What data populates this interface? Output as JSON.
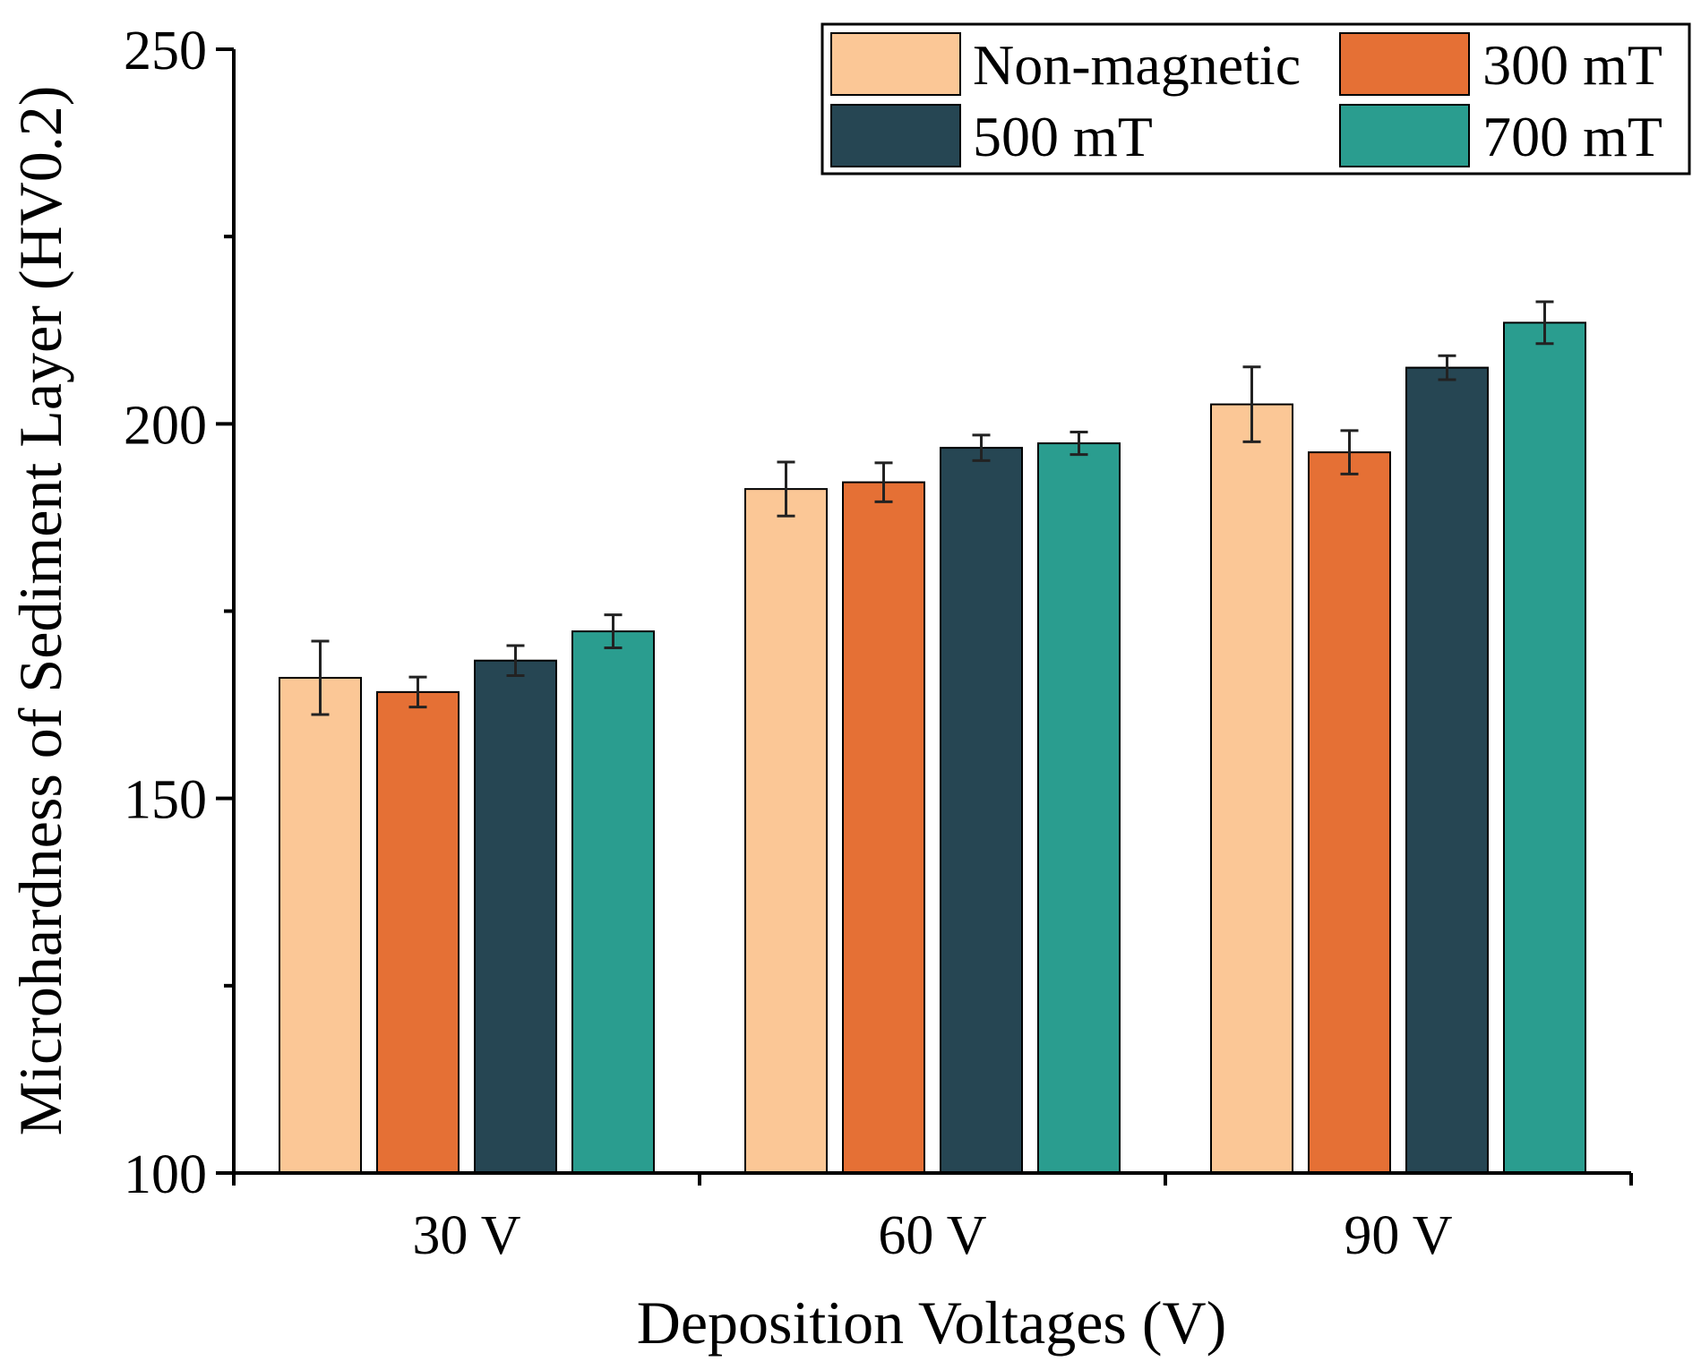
{
  "chart_data": {
    "type": "bar",
    "title": "",
    "xlabel": "Deposition Voltages (V)",
    "ylabel": "Microhardness of Sediment Layer  (HV0.2)",
    "categories": [
      "30 V",
      "60 V",
      "90 V"
    ],
    "ylim": [
      100,
      250
    ],
    "yticks": [
      100,
      150,
      200,
      250
    ],
    "yminor": [
      125,
      175,
      225
    ],
    "legend_position": "top-right",
    "series": [
      {
        "name": "Non-magnetic",
        "color": "#FBC796",
        "values": [
          166.1,
          191.3,
          202.6
        ],
        "errors": [
          4.9,
          3.6,
          5.0
        ]
      },
      {
        "name": "300 mT",
        "color": "#E57035",
        "values": [
          164.2,
          192.2,
          196.2
        ],
        "errors": [
          2.0,
          2.6,
          2.9
        ]
      },
      {
        "name": "500 mT",
        "color": "#264653",
        "values": [
          168.4,
          196.8,
          207.5
        ],
        "errors": [
          2.0,
          1.7,
          1.6
        ]
      },
      {
        "name": "700 mT",
        "color": "#2A9D8F",
        "values": [
          172.3,
          197.4,
          213.5
        ],
        "errors": [
          2.2,
          1.5,
          2.8
        ]
      }
    ]
  }
}
